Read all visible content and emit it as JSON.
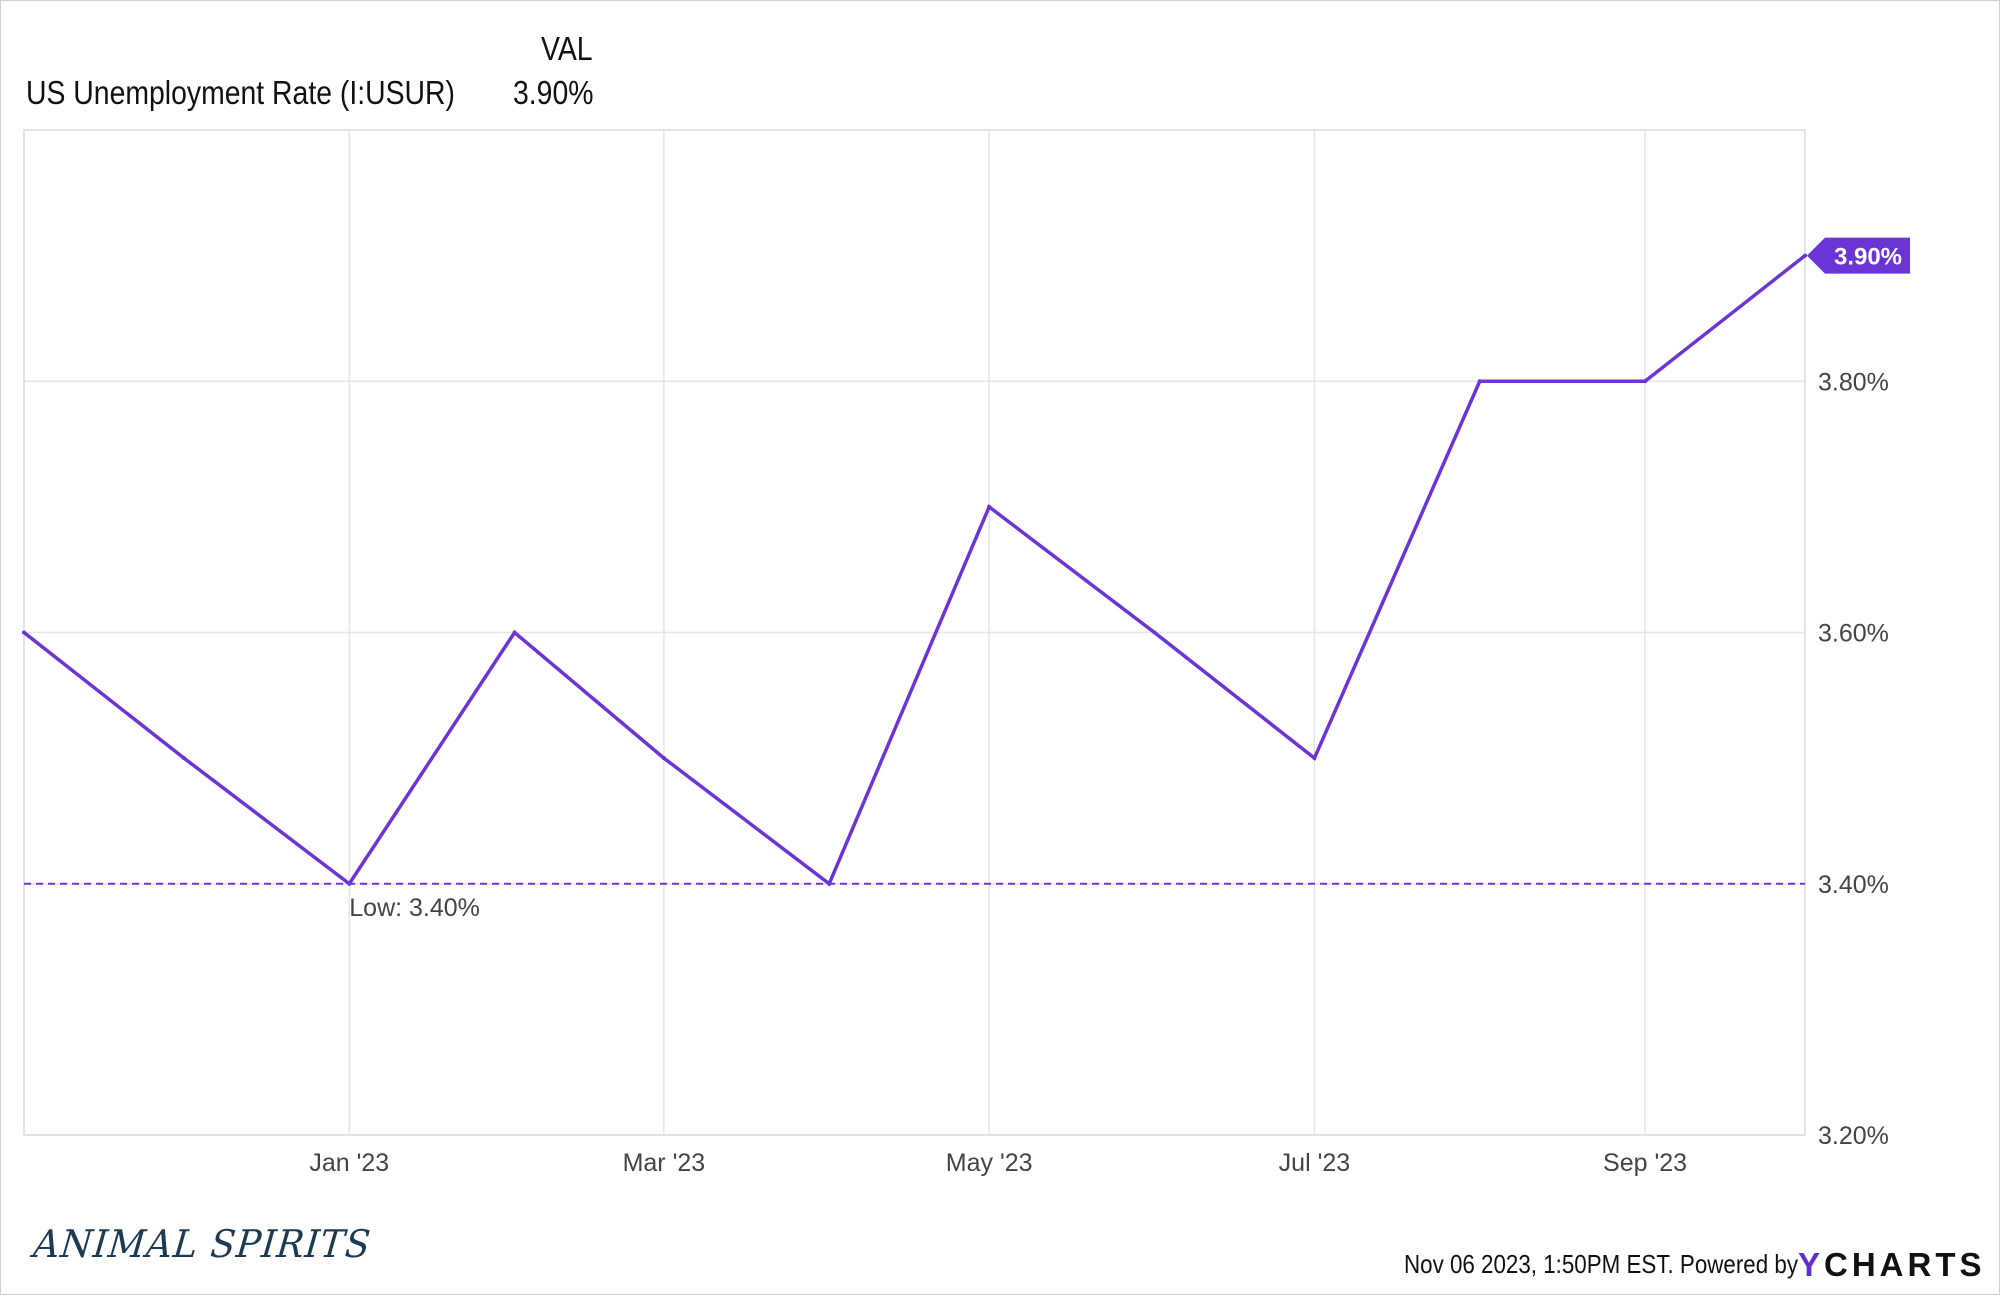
{
  "legend": {
    "value_header": "VAL",
    "series_name": "US Unemployment Rate (I:USUR)",
    "series_value": "3.90%"
  },
  "colors": {
    "series": "#6a35d4",
    "label_bg": "#6a35d4",
    "grid": "#e6e6e6",
    "axis_text": "#444444",
    "ycharts_accent": "#5f2dd1"
  },
  "chart_data": {
    "type": "line",
    "title": "",
    "xlabel": "",
    "ylabel": "",
    "x": [
      "2022-11-01",
      "2022-12-01",
      "2023-01-01",
      "2023-02-01",
      "2023-03-01",
      "2023-04-01",
      "2023-05-01",
      "2023-06-01",
      "2023-07-01",
      "2023-08-01",
      "2023-09-01",
      "2023-10-01"
    ],
    "series": [
      {
        "name": "US Unemployment Rate (I:USUR)",
        "values": [
          3.6,
          3.5,
          3.4,
          3.6,
          3.5,
          3.4,
          3.7,
          3.6,
          3.5,
          3.8,
          3.8,
          3.9
        ]
      }
    ],
    "ylim": [
      3.2,
      4.0
    ],
    "y_ticks": [
      3.2,
      3.4,
      3.6,
      3.8
    ],
    "y_tick_labels": [
      "3.20%",
      "3.40%",
      "3.60%",
      "3.80%"
    ],
    "x_ticks": [
      "2023-01-01",
      "2023-03-01",
      "2023-05-01",
      "2023-07-01",
      "2023-09-01"
    ],
    "x_tick_labels": [
      "Jan '23",
      "Mar '23",
      "May '23",
      "Jul '23",
      "Sep '23"
    ],
    "low_line": {
      "value": 3.4,
      "label": "Low: 3.40%"
    },
    "last_value_label": "3.90%",
    "grid": true,
    "legend_position": "top-left"
  },
  "footer": {
    "timestamp": "Nov 06 2023, 1:50PM EST. Powered by",
    "logo_y": "Y",
    "logo_rest": "CHARTS"
  },
  "watermark": "ANIMAL SPIRITS"
}
